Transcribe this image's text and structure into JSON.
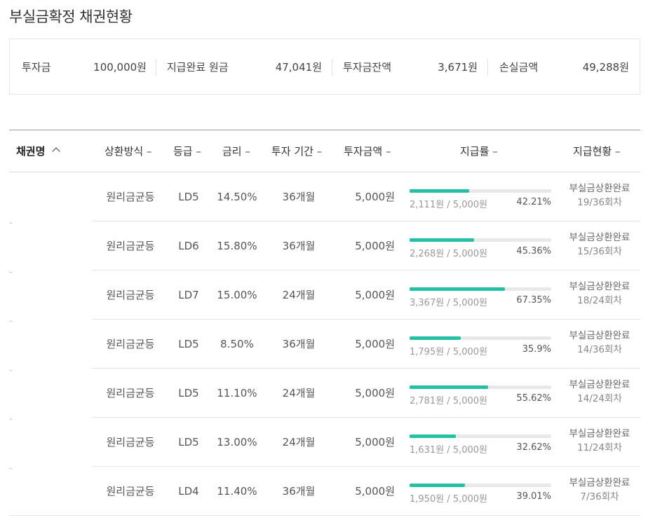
{
  "page_title": "부실금확정 채권현황",
  "summary": {
    "investment": {
      "label": "투자금",
      "value": "100,000원"
    },
    "paid_principal": {
      "label": "지급완료 원금",
      "value": "47,041원"
    },
    "balance": {
      "label": "투자금잔액",
      "value": "3,671원"
    },
    "loss": {
      "label": "손실금액",
      "value": "49,288원"
    }
  },
  "columns": {
    "bond_name": "채권명",
    "bond_name_sort": "^",
    "method": "상환방식",
    "grade": "등급",
    "rate": "금리",
    "period": "투자 기간",
    "amount": "투자금액",
    "payout_rate": "지급률",
    "status": "지급현황",
    "sort_mark": "–"
  },
  "rows": [
    {
      "bond": "–",
      "method": "원리금균등",
      "grade": "LD5",
      "rate": "14.50%",
      "period": "36개월",
      "amount": "5,000원",
      "paid": "2,111원 / 5,000원",
      "pct_label": "42.21%",
      "pct": 42.21,
      "status": "부실금상환완료",
      "status_sub": "19/36회차"
    },
    {
      "bond": "–",
      "method": "원리금균등",
      "grade": "LD6",
      "rate": "15.80%",
      "period": "36개월",
      "amount": "5,000원",
      "paid": "2,268원 / 5,000원",
      "pct_label": "45.36%",
      "pct": 45.36,
      "status": "부실금상환완료",
      "status_sub": "15/36회차"
    },
    {
      "bond": "–",
      "method": "원리금균등",
      "grade": "LD7",
      "rate": "15.00%",
      "period": "24개월",
      "amount": "5,000원",
      "paid": "3,367원 / 5,000원",
      "pct_label": "67.35%",
      "pct": 67.35,
      "status": "부실금상환완료",
      "status_sub": "18/24회차"
    },
    {
      "bond": "–",
      "method": "원리금균등",
      "grade": "LD5",
      "rate": "8.50%",
      "period": "36개월",
      "amount": "5,000원",
      "paid": "1,795원 / 5,000원",
      "pct_label": "35.9%",
      "pct": 35.9,
      "status": "부실금상환완료",
      "status_sub": "14/36회차"
    },
    {
      "bond": "–",
      "method": "원리금균등",
      "grade": "LD5",
      "rate": "11.10%",
      "period": "24개월",
      "amount": "5,000원",
      "paid": "2,781원 / 5,000원",
      "pct_label": "55.62%",
      "pct": 55.62,
      "status": "부실금상환완료",
      "status_sub": "14/24회차"
    },
    {
      "bond": "–",
      "method": "원리금균등",
      "grade": "LD5",
      "rate": "13.00%",
      "period": "24개월",
      "amount": "5,000원",
      "paid": "1,631원 / 5,000원",
      "pct_label": "32.62%",
      "pct": 32.62,
      "status": "부실금상환완료",
      "status_sub": "11/24회차"
    },
    {
      "bond": "",
      "method": "원리금균등",
      "grade": "LD4",
      "rate": "11.40%",
      "period": "36개월",
      "amount": "5,000원",
      "paid": "1,950원 / 5,000원",
      "pct_label": "39.01%",
      "pct": 39.01,
      "status": "부실금상환완료",
      "status_sub": "7/36회차"
    }
  ],
  "colors": {
    "accent": "#25bfa6",
    "track": "#e8e8e8"
  }
}
